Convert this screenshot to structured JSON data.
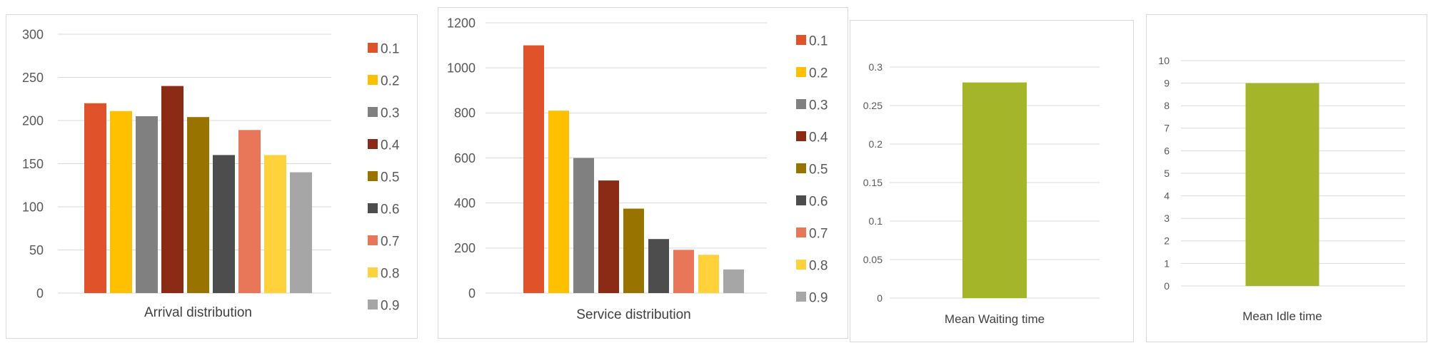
{
  "chart_data": [
    {
      "type": "bar",
      "title": "",
      "xlabel": "Arrival distribution",
      "ylabel": "",
      "ylim": [
        0,
        300
      ],
      "yticks": [
        0,
        50,
        100,
        150,
        200,
        250,
        300
      ],
      "categories": [
        "Arrival distribution"
      ],
      "legend_position": "right",
      "series": [
        {
          "name": "0.1",
          "values": [
            220
          ],
          "color": "#E0522A"
        },
        {
          "name": "0.2",
          "values": [
            211
          ],
          "color": "#FFC000"
        },
        {
          "name": "0.3",
          "values": [
            205
          ],
          "color": "#808080"
        },
        {
          "name": "0.4",
          "values": [
            240
          ],
          "color": "#8B2B16"
        },
        {
          "name": "0.5",
          "values": [
            204
          ],
          "color": "#997300"
        },
        {
          "name": "0.6",
          "values": [
            160
          ],
          "color": "#4D4D4D"
        },
        {
          "name": "0.7",
          "values": [
            189
          ],
          "color": "#E8775A"
        },
        {
          "name": "0.8",
          "values": [
            160
          ],
          "color": "#FFD13A"
        },
        {
          "name": "0.9",
          "values": [
            140
          ],
          "color": "#A6A6A6"
        }
      ]
    },
    {
      "type": "bar",
      "title": "",
      "xlabel": "Service distribution",
      "ylabel": "",
      "ylim": [
        0,
        1200
      ],
      "yticks": [
        0,
        200,
        400,
        600,
        800,
        1000,
        1200
      ],
      "categories": [
        "Service distribution"
      ],
      "legend_position": "right",
      "series": [
        {
          "name": "0.1",
          "values": [
            1100
          ],
          "color": "#E0522A"
        },
        {
          "name": "0.2",
          "values": [
            810
          ],
          "color": "#FFC000"
        },
        {
          "name": "0.3",
          "values": [
            600
          ],
          "color": "#808080"
        },
        {
          "name": "0.4",
          "values": [
            500
          ],
          "color": "#8B2B16"
        },
        {
          "name": "0.5",
          "values": [
            375
          ],
          "color": "#997300"
        },
        {
          "name": "0.6",
          "values": [
            240
          ],
          "color": "#4D4D4D"
        },
        {
          "name": "0.7",
          "values": [
            192
          ],
          "color": "#E8775A"
        },
        {
          "name": "0.8",
          "values": [
            170
          ],
          "color": "#FFD13A"
        },
        {
          "name": "0.9",
          "values": [
            105
          ],
          "color": "#A6A6A6"
        }
      ]
    },
    {
      "type": "bar",
      "title": "",
      "xlabel": "Mean Waiting time",
      "ylabel": "",
      "ylim": [
        0,
        0.3
      ],
      "yticks": [
        0,
        0.05,
        0.1,
        0.15,
        0.2,
        0.25,
        0.3
      ],
      "categories": [
        "Mean Waiting time"
      ],
      "legend_position": "none",
      "series": [
        {
          "name": "Mean Waiting time",
          "values": [
            0.28
          ],
          "color": "#A5B52A"
        }
      ]
    },
    {
      "type": "bar",
      "title": "",
      "xlabel": "Mean Idle time",
      "ylabel": "",
      "ylim": [
        0,
        10
      ],
      "yticks": [
        0,
        1,
        2,
        3,
        4,
        5,
        6,
        7,
        8,
        9,
        10
      ],
      "categories": [
        "Mean Idle time"
      ],
      "legend_position": "none",
      "series": [
        {
          "name": "Mean Idle time",
          "values": [
            9
          ],
          "color": "#A5B52A"
        }
      ]
    }
  ]
}
